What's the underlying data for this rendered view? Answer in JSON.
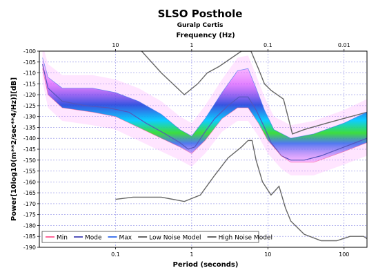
{
  "chart_data": {
    "type": "line",
    "title": "SLSO Posthole",
    "subtitle": "Guralp Certis",
    "xlabel": "Period (seconds)",
    "x2label": "Frequency (Hz)",
    "ylabel": "Power[10log10(m**2/sec**4/Hz)][dB]",
    "x_scale": "log",
    "xlim": [
      0.01,
      200
    ],
    "ylim": [
      -190,
      -100
    ],
    "grid": true,
    "legend_position": "bottom-left",
    "xticks": [
      {
        "value": 0.1,
        "label": "0.1"
      },
      {
        "value": 1,
        "label": "1"
      },
      {
        "value": 10,
        "label": "10"
      },
      {
        "value": 100,
        "label": "100"
      }
    ],
    "x2ticks": [
      {
        "value": 0.1,
        "label": "10"
      },
      {
        "value": 1,
        "label": "1"
      },
      {
        "value": 10,
        "label": "0.1"
      },
      {
        "value": 100,
        "label": "0.01"
      }
    ],
    "yticks": [
      -100,
      -105,
      -110,
      -115,
      -120,
      -125,
      -130,
      -135,
      -140,
      -145,
      -150,
      -155,
      -160,
      -165,
      -170,
      -175,
      -180,
      -185,
      -190
    ],
    "legend": [
      {
        "label": "Min",
        "color": "#ff6699"
      },
      {
        "label": "Mode",
        "color": "#5555bb"
      },
      {
        "label": "Max",
        "color": "#4477ee"
      },
      {
        "label": "Low Noise Model",
        "color": "#666666"
      },
      {
        "label": "High Noise Model",
        "color": "#666666"
      }
    ],
    "series": [
      {
        "name": "Low Noise Model",
        "color": "#666666",
        "points": [
          [
            0.1,
            -168
          ],
          [
            0.17,
            -167
          ],
          [
            0.4,
            -167
          ],
          [
            0.8,
            -169
          ],
          [
            1.3,
            -166
          ],
          [
            2,
            -157
          ],
          [
            3,
            -149
          ],
          [
            4.5,
            -144
          ],
          [
            5.5,
            -141
          ],
          [
            6.2,
            -141
          ],
          [
            7,
            -150
          ],
          [
            8.5,
            -160
          ],
          [
            11,
            -166
          ],
          [
            14,
            -162
          ],
          [
            17,
            -172
          ],
          [
            20,
            -178
          ],
          [
            30,
            -184
          ],
          [
            50,
            -187
          ],
          [
            80,
            -187
          ],
          [
            120,
            -185
          ],
          [
            180,
            -185
          ],
          [
            200,
            -186
          ]
        ]
      },
      {
        "name": "High Noise Model",
        "color": "#666666",
        "points": [
          [
            0.22,
            -100
          ],
          [
            0.4,
            -110
          ],
          [
            0.8,
            -120
          ],
          [
            1.2,
            -115
          ],
          [
            1.6,
            -110
          ],
          [
            2.3,
            -107
          ],
          [
            4.5,
            -100
          ],
          [
            6,
            -100
          ],
          [
            7.5,
            -108
          ],
          [
            9,
            -115
          ],
          [
            11,
            -118
          ],
          [
            16,
            -122
          ],
          [
            21,
            -138
          ],
          [
            30,
            -136
          ],
          [
            60,
            -133
          ],
          [
            200,
            -128
          ]
        ]
      },
      {
        "name": "Mode",
        "color": "#5555bb",
        "points": [
          [
            0.011,
            -106
          ],
          [
            0.013,
            -117
          ],
          [
            0.02,
            -123
          ],
          [
            0.04,
            -125
          ],
          [
            0.08,
            -126
          ],
          [
            0.15,
            -128
          ],
          [
            0.25,
            -133
          ],
          [
            0.45,
            -138
          ],
          [
            0.7,
            -142
          ],
          [
            0.9,
            -145
          ],
          [
            1.1,
            -144
          ],
          [
            1.5,
            -137
          ],
          [
            2,
            -131
          ],
          [
            3,
            -125
          ],
          [
            4.2,
            -121
          ],
          [
            5.5,
            -121
          ],
          [
            7,
            -127
          ],
          [
            9,
            -135
          ],
          [
            11,
            -142
          ],
          [
            15,
            -148
          ],
          [
            20,
            -150
          ],
          [
            30,
            -150
          ],
          [
            50,
            -148
          ],
          [
            100,
            -144
          ],
          [
            200,
            -140
          ]
        ]
      },
      {
        "name": "Min",
        "color": "#ff6699",
        "points": [
          [
            0.011,
            -108
          ],
          [
            0.013,
            -120
          ],
          [
            0.02,
            -126
          ],
          [
            0.05,
            -128
          ],
          [
            0.1,
            -130
          ],
          [
            0.2,
            -135
          ],
          [
            0.4,
            -140
          ],
          [
            0.7,
            -144
          ],
          [
            1,
            -147
          ],
          [
            1.5,
            -141
          ],
          [
            2.5,
            -131
          ],
          [
            4,
            -126
          ],
          [
            5.5,
            -126
          ],
          [
            7.5,
            -133
          ],
          [
            10,
            -141
          ],
          [
            15,
            -148
          ],
          [
            20,
            -151
          ],
          [
            40,
            -151
          ],
          [
            100,
            -146
          ],
          [
            200,
            -142
          ]
        ]
      },
      {
        "name": "Max",
        "color": "#4477ee",
        "points": [
          [
            0.011,
            -103
          ],
          [
            0.013,
            -112
          ],
          [
            0.02,
            -117
          ],
          [
            0.05,
            -117
          ],
          [
            0.1,
            -119
          ],
          [
            0.2,
            -123
          ],
          [
            0.4,
            -129
          ],
          [
            0.7,
            -136
          ],
          [
            1,
            -139
          ],
          [
            1.5,
            -131
          ],
          [
            2.5,
            -119
          ],
          [
            4,
            -109
          ],
          [
            5.5,
            -108
          ],
          [
            7,
            -117
          ],
          [
            9,
            -127
          ],
          [
            12,
            -136
          ],
          [
            20,
            -140
          ],
          [
            40,
            -138
          ],
          [
            100,
            -133
          ],
          [
            200,
            -128
          ]
        ]
      }
    ]
  }
}
